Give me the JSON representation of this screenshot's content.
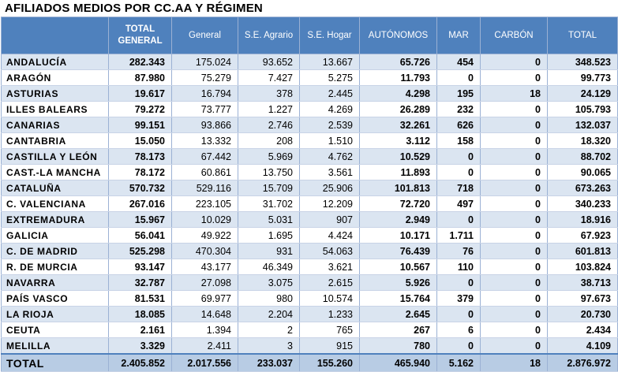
{
  "title": "AFILIADOS MEDIOS POR CC.AA Y RÉGIMEN",
  "headers": {
    "total_general": "TOTAL GENERAL",
    "general": "General",
    "se_agrario": "S.E. Agrario",
    "se_hogar": "S.E. Hogar",
    "autonomos": "AUTÓNOMOS",
    "mar": "MAR",
    "carbon": "CARBÓN",
    "total": "TOTAL"
  },
  "rows": [
    {
      "name": "ANDALUCÍA",
      "total_general": "282.343",
      "general": "175.024",
      "se_agrario": "93.652",
      "se_hogar": "13.667",
      "autonomos": "65.726",
      "mar": "454",
      "carbon": "0",
      "total": "348.523"
    },
    {
      "name": "ARAGÓN",
      "total_general": "87.980",
      "general": "75.279",
      "se_agrario": "7.427",
      "se_hogar": "5.275",
      "autonomos": "11.793",
      "mar": "0",
      "carbon": "0",
      "total": "99.773"
    },
    {
      "name": "ASTURIAS",
      "total_general": "19.617",
      "general": "16.794",
      "se_agrario": "378",
      "se_hogar": "2.445",
      "autonomos": "4.298",
      "mar": "195",
      "carbon": "18",
      "total": "24.129"
    },
    {
      "name": "ILLES BALEARS",
      "total_general": "79.272",
      "general": "73.777",
      "se_agrario": "1.227",
      "se_hogar": "4.269",
      "autonomos": "26.289",
      "mar": "232",
      "carbon": "0",
      "total": "105.793"
    },
    {
      "name": "CANARIAS",
      "total_general": "99.151",
      "general": "93.866",
      "se_agrario": "2.746",
      "se_hogar": "2.539",
      "autonomos": "32.261",
      "mar": "626",
      "carbon": "0",
      "total": "132.037"
    },
    {
      "name": "CANTABRIA",
      "total_general": "15.050",
      "general": "13.332",
      "se_agrario": "208",
      "se_hogar": "1.510",
      "autonomos": "3.112",
      "mar": "158",
      "carbon": "0",
      "total": "18.320"
    },
    {
      "name": "CASTILLA Y LEÓN",
      "total_general": "78.173",
      "general": "67.442",
      "se_agrario": "5.969",
      "se_hogar": "4.762",
      "autonomos": "10.529",
      "mar": "0",
      "carbon": "0",
      "total": "88.702"
    },
    {
      "name": "CAST.-LA MANCHA",
      "total_general": "78.172",
      "general": "60.861",
      "se_agrario": "13.750",
      "se_hogar": "3.561",
      "autonomos": "11.893",
      "mar": "0",
      "carbon": "0",
      "total": "90.065"
    },
    {
      "name": "CATALUÑA",
      "total_general": "570.732",
      "general": "529.116",
      "se_agrario": "15.709",
      "se_hogar": "25.906",
      "autonomos": "101.813",
      "mar": "718",
      "carbon": "0",
      "total": "673.263"
    },
    {
      "name": "C. VALENCIANA",
      "total_general": "267.016",
      "general": "223.105",
      "se_agrario": "31.702",
      "se_hogar": "12.209",
      "autonomos": "72.720",
      "mar": "497",
      "carbon": "0",
      "total": "340.233"
    },
    {
      "name": "EXTREMADURA",
      "total_general": "15.967",
      "general": "10.029",
      "se_agrario": "5.031",
      "se_hogar": "907",
      "autonomos": "2.949",
      "mar": "0",
      "carbon": "0",
      "total": "18.916"
    },
    {
      "name": "GALICIA",
      "total_general": "56.041",
      "general": "49.922",
      "se_agrario": "1.695",
      "se_hogar": "4.424",
      "autonomos": "10.171",
      "mar": "1.711",
      "carbon": "0",
      "total": "67.923"
    },
    {
      "name": "C. DE MADRID",
      "total_general": "525.298",
      "general": "470.304",
      "se_agrario": "931",
      "se_hogar": "54.063",
      "autonomos": "76.439",
      "mar": "76",
      "carbon": "0",
      "total": "601.813"
    },
    {
      "name": "R. DE MURCIA",
      "total_general": "93.147",
      "general": "43.177",
      "se_agrario": "46.349",
      "se_hogar": "3.621",
      "autonomos": "10.567",
      "mar": "110",
      "carbon": "0",
      "total": "103.824"
    },
    {
      "name": "NAVARRA",
      "total_general": "32.787",
      "general": "27.098",
      "se_agrario": "3.075",
      "se_hogar": "2.615",
      "autonomos": "5.926",
      "mar": "0",
      "carbon": "0",
      "total": "38.713"
    },
    {
      "name": "PAÍS VASCO",
      "total_general": "81.531",
      "general": "69.977",
      "se_agrario": "980",
      "se_hogar": "10.574",
      "autonomos": "15.764",
      "mar": "379",
      "carbon": "0",
      "total": "97.673"
    },
    {
      "name": "LA RIOJA",
      "total_general": "18.085",
      "general": "14.648",
      "se_agrario": "2.204",
      "se_hogar": "1.233",
      "autonomos": "2.645",
      "mar": "0",
      "carbon": "0",
      "total": "20.730"
    },
    {
      "name": "CEUTA",
      "total_general": "2.161",
      "general": "1.394",
      "se_agrario": "2",
      "se_hogar": "765",
      "autonomos": "267",
      "mar": "6",
      "carbon": "0",
      "total": "2.434"
    },
    {
      "name": "MELILLA",
      "total_general": "3.329",
      "general": "2.411",
      "se_agrario": "3",
      "se_hogar": "915",
      "autonomos": "780",
      "mar": "0",
      "carbon": "0",
      "total": "4.109"
    }
  ],
  "totals": {
    "name": "TOTAL",
    "total_general": "2.405.852",
    "general": "2.017.556",
    "se_agrario": "233.037",
    "se_hogar": "155.260",
    "autonomos": "465.940",
    "mar": "5.162",
    "carbon": "18",
    "total": "2.876.972"
  }
}
